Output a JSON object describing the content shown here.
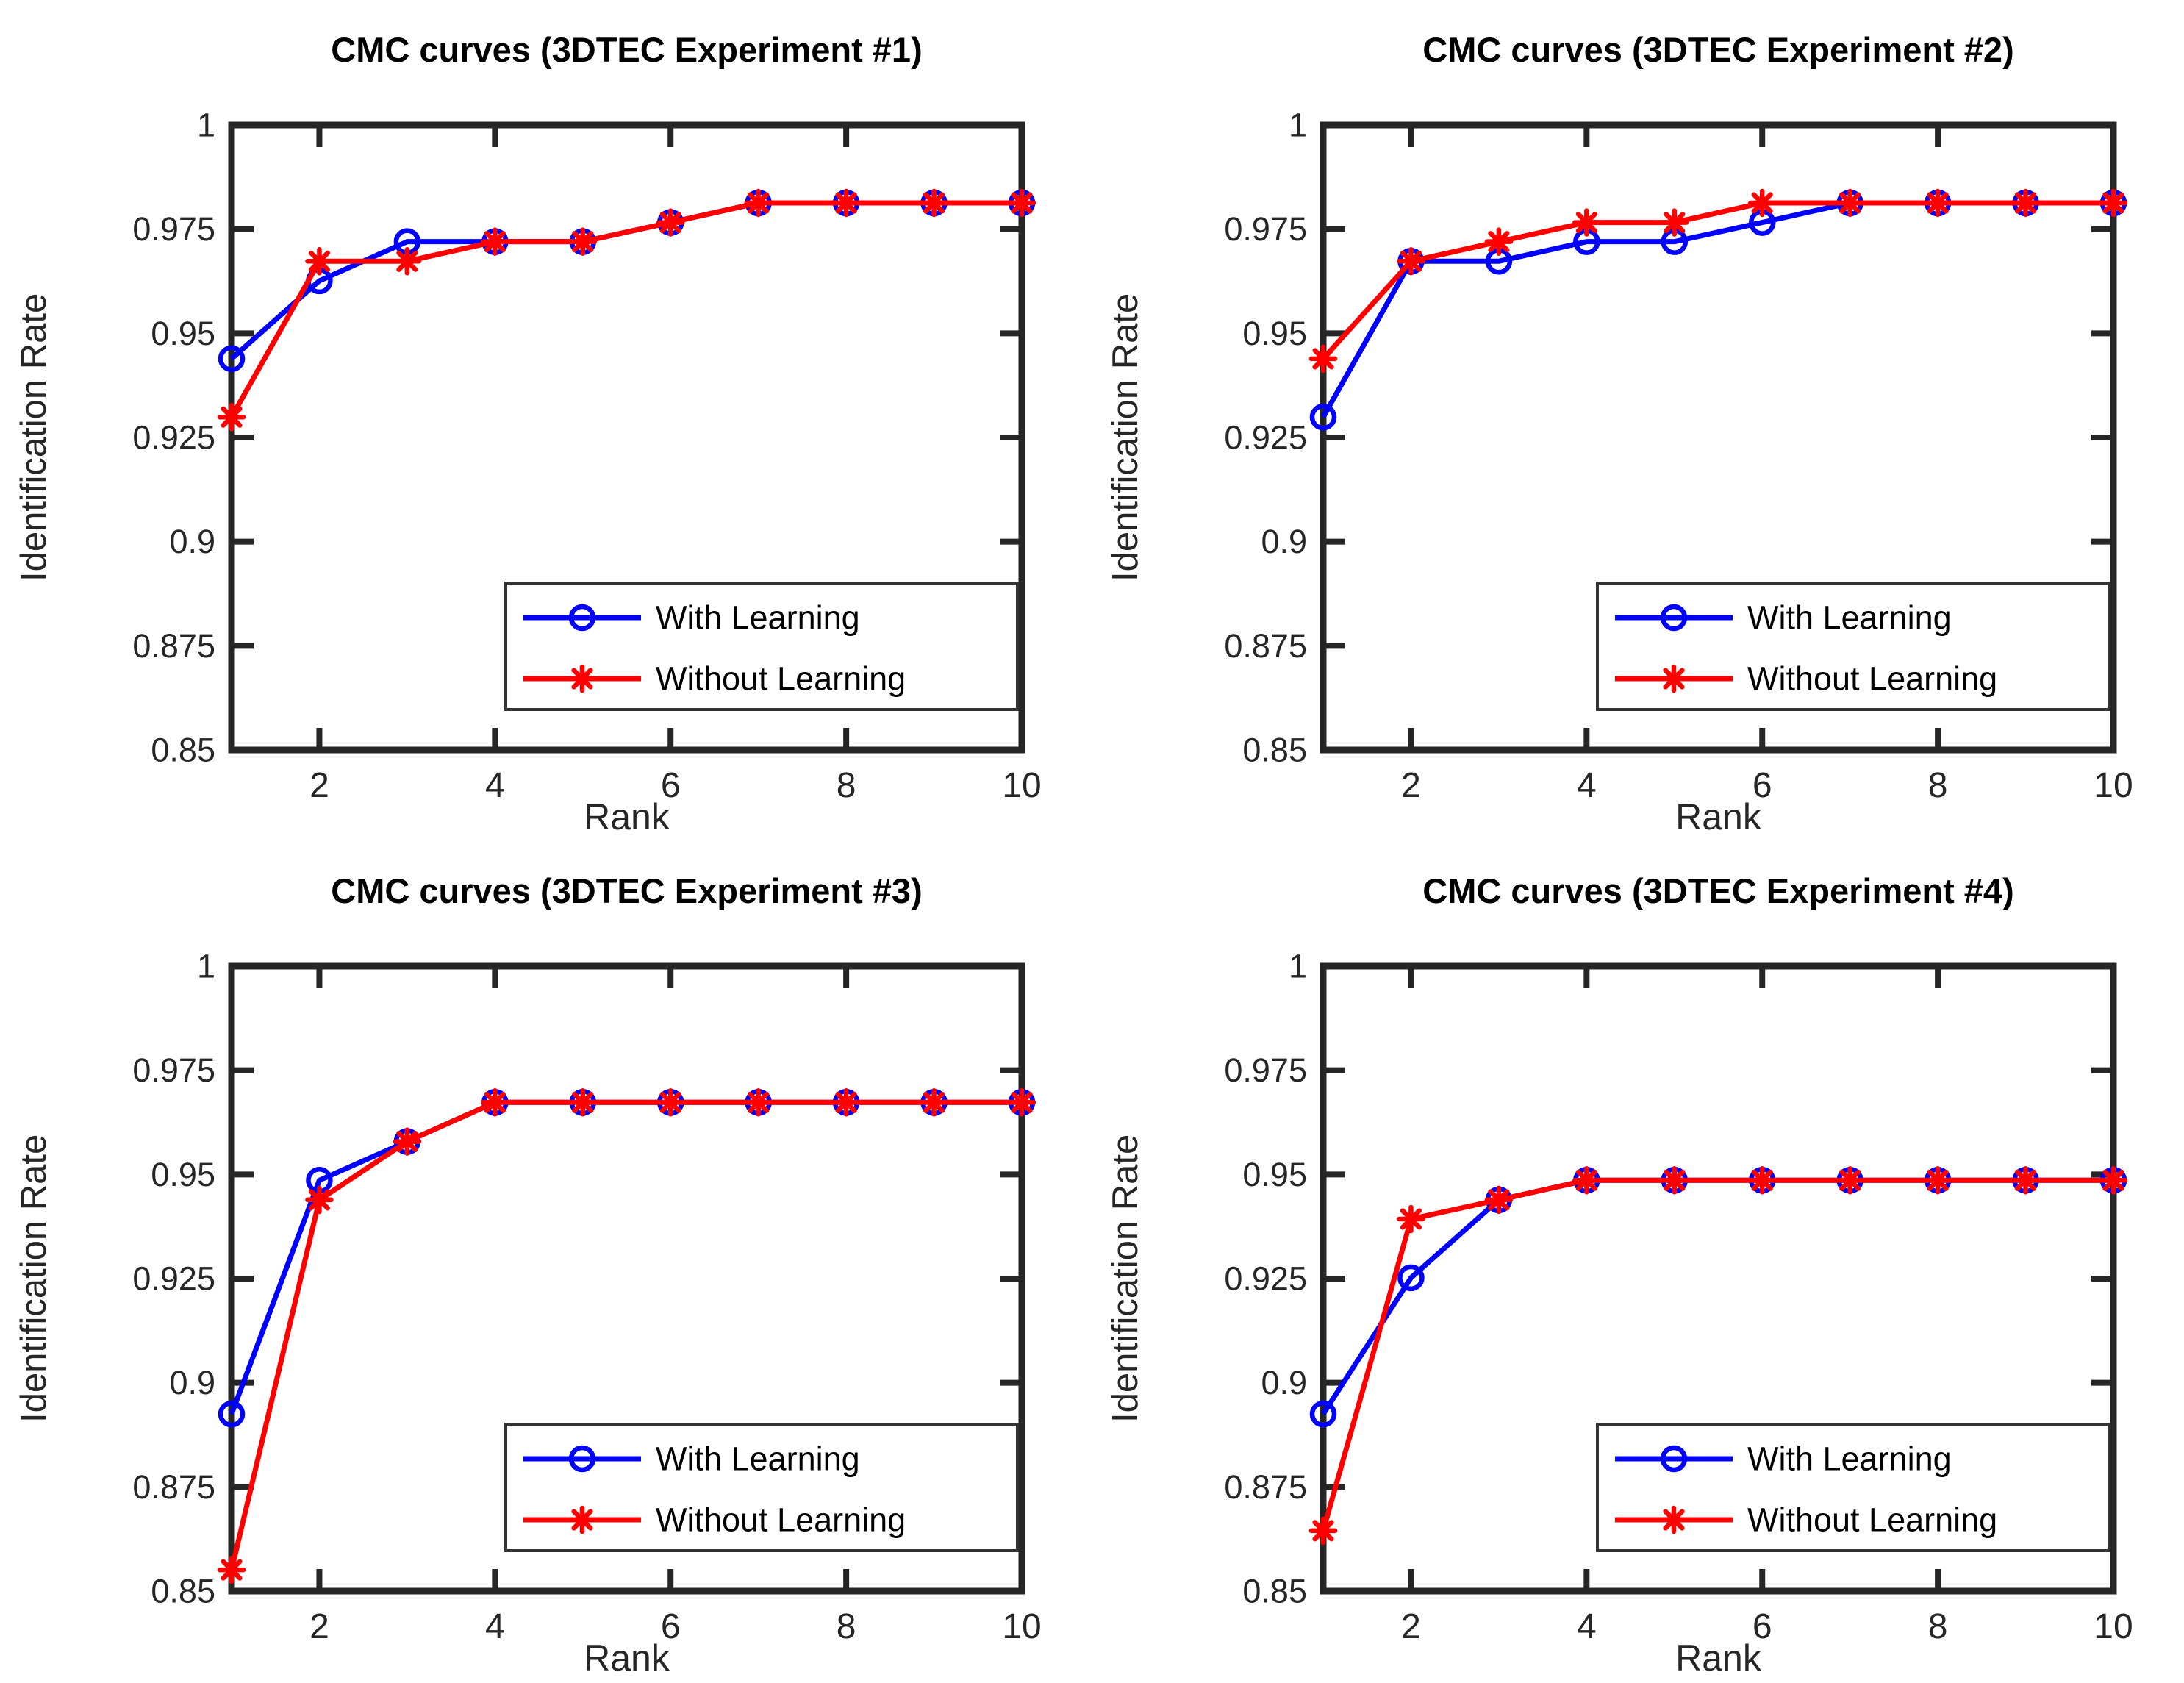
{
  "page": {
    "background": "#ffffff"
  },
  "style": {
    "axis_color": "#262626",
    "title_color": "#000000",
    "legend_border_color": "#333333",
    "with_learning_color": "#0000ff",
    "without_learning_color": "#ff0000"
  },
  "chart_data": [
    {
      "type": "line",
      "title": "CMC curves (3DTEC Experiment #1)",
      "xlabel": "Rank",
      "ylabel": "Identification Rate",
      "x": [
        1,
        2,
        3,
        4,
        5,
        6,
        7,
        8,
        9,
        10
      ],
      "xlim": [
        1,
        10
      ],
      "ylim": [
        0.85,
        1
      ],
      "xticks": [
        2,
        4,
        6,
        8,
        10
      ],
      "yticks": [
        0.85,
        0.875,
        0.9,
        0.925,
        0.95,
        0.975,
        1
      ],
      "ytick_labels": [
        "0.85",
        "0.875",
        "0.9",
        "0.925",
        "0.95",
        "0.975",
        "1"
      ],
      "grid": false,
      "legend_position": "lower right",
      "series": [
        {
          "name": "With Learning",
          "color": "#0000ff",
          "marker": "circle",
          "values": [
            0.9439,
            0.9626,
            0.972,
            0.972,
            0.972,
            0.9766,
            0.9813,
            0.9813,
            0.9813,
            0.9813
          ]
        },
        {
          "name": "Without Learning",
          "color": "#ff0000",
          "marker": "asterisk",
          "values": [
            0.9299,
            0.9673,
            0.9673,
            0.972,
            0.972,
            0.9766,
            0.9813,
            0.9813,
            0.9813,
            0.9813
          ]
        }
      ]
    },
    {
      "type": "line",
      "title": "CMC curves (3DTEC Experiment #2)",
      "xlabel": "Rank",
      "ylabel": "Identification Rate",
      "x": [
        1,
        2,
        3,
        4,
        5,
        6,
        7,
        8,
        9,
        10
      ],
      "xlim": [
        1,
        10
      ],
      "ylim": [
        0.85,
        1
      ],
      "xticks": [
        2,
        4,
        6,
        8,
        10
      ],
      "yticks": [
        0.85,
        0.875,
        0.9,
        0.925,
        0.95,
        0.975,
        1
      ],
      "ytick_labels": [
        "0.85",
        "0.875",
        "0.9",
        "0.925",
        "0.95",
        "0.975",
        "1"
      ],
      "grid": false,
      "legend_position": "lower right",
      "series": [
        {
          "name": "With Learning",
          "color": "#0000ff",
          "marker": "circle",
          "values": [
            0.9299,
            0.9673,
            0.9673,
            0.972,
            0.972,
            0.9766,
            0.9813,
            0.9813,
            0.9813,
            0.9813
          ]
        },
        {
          "name": "Without Learning",
          "color": "#ff0000",
          "marker": "asterisk",
          "values": [
            0.9439,
            0.9673,
            0.972,
            0.9766,
            0.9766,
            0.9813,
            0.9813,
            0.9813,
            0.9813,
            0.9813
          ]
        }
      ]
    },
    {
      "type": "line",
      "title": "CMC curves (3DTEC Experiment #3)",
      "xlabel": "Rank",
      "ylabel": "Identification Rate",
      "x": [
        1,
        2,
        3,
        4,
        5,
        6,
        7,
        8,
        9,
        10
      ],
      "xlim": [
        1,
        10
      ],
      "ylim": [
        0.85,
        1
      ],
      "xticks": [
        2,
        4,
        6,
        8,
        10
      ],
      "yticks": [
        0.85,
        0.875,
        0.9,
        0.925,
        0.95,
        0.975,
        1
      ],
      "ytick_labels": [
        "0.85",
        "0.875",
        "0.9",
        "0.925",
        "0.95",
        "0.975",
        "1"
      ],
      "grid": false,
      "legend_position": "lower right",
      "series": [
        {
          "name": "With Learning",
          "color": "#0000ff",
          "marker": "circle",
          "values": [
            0.8925,
            0.9486,
            0.9579,
            0.9673,
            0.9673,
            0.9673,
            0.9673,
            0.9673,
            0.9673,
            0.9673
          ]
        },
        {
          "name": "Without Learning",
          "color": "#ff0000",
          "marker": "asterisk",
          "values": [
            0.8551,
            0.9439,
            0.9579,
            0.9673,
            0.9673,
            0.9673,
            0.9673,
            0.9673,
            0.9673,
            0.9673
          ]
        }
      ]
    },
    {
      "type": "line",
      "title": "CMC curves (3DTEC Experiment #4)",
      "xlabel": "Rank",
      "ylabel": "Identification Rate",
      "x": [
        1,
        2,
        3,
        4,
        5,
        6,
        7,
        8,
        9,
        10
      ],
      "xlim": [
        1,
        10
      ],
      "ylim": [
        0.85,
        1
      ],
      "xticks": [
        2,
        4,
        6,
        8,
        10
      ],
      "yticks": [
        0.85,
        0.875,
        0.9,
        0.925,
        0.95,
        0.975,
        1
      ],
      "ytick_labels": [
        "0.85",
        "0.875",
        "0.9",
        "0.925",
        "0.95",
        "0.975",
        "1"
      ],
      "grid": false,
      "legend_position": "lower right",
      "series": [
        {
          "name": "With Learning",
          "color": "#0000ff",
          "marker": "circle",
          "values": [
            0.8925,
            0.9252,
            0.9439,
            0.9486,
            0.9486,
            0.9486,
            0.9486,
            0.9486,
            0.9486,
            0.9486
          ]
        },
        {
          "name": "Without Learning",
          "color": "#ff0000",
          "marker": "asterisk",
          "values": [
            0.8645,
            0.9393,
            0.9439,
            0.9486,
            0.9486,
            0.9486,
            0.9486,
            0.9486,
            0.9486,
            0.9486
          ]
        }
      ]
    }
  ]
}
